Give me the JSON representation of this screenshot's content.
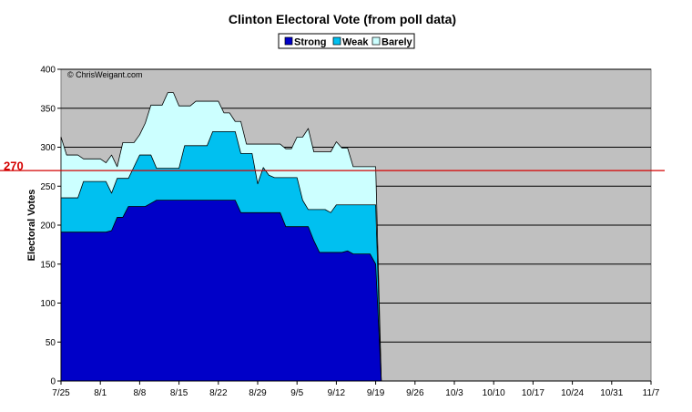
{
  "chart_data": {
    "type": "area",
    "title": "Clinton Electoral Vote (from poll data)",
    "xlabel": "",
    "ylabel": "Electoral Votes",
    "annotation": "© ChrisWeigant.com",
    "ylim": [
      0,
      400
    ],
    "yticks": [
      0,
      50,
      100,
      150,
      200,
      250,
      300,
      350,
      400
    ],
    "xlim": [
      "7/25",
      "11/7"
    ],
    "xticks": [
      "7/25",
      "8/1",
      "8/8",
      "8/15",
      "8/22",
      "8/29",
      "9/5",
      "9/12",
      "9/19",
      "9/26",
      "10/3",
      "10/10",
      "10/17",
      "10/24",
      "10/31",
      "11/7"
    ],
    "grid": "horizontal",
    "legend_position": "top-center",
    "reference_line": {
      "value": 270,
      "label": "270",
      "color": "#d40000"
    },
    "plot_background": "#c0c0c0",
    "x": [
      "7/25",
      "7/26",
      "7/27",
      "7/28",
      "7/29",
      "7/30",
      "7/31",
      "8/1",
      "8/2",
      "8/3",
      "8/4",
      "8/5",
      "8/6",
      "8/7",
      "8/8",
      "8/9",
      "8/10",
      "8/11",
      "8/12",
      "8/13",
      "8/14",
      "8/15",
      "8/16",
      "8/17",
      "8/18",
      "8/19",
      "8/20",
      "8/21",
      "8/22",
      "8/23",
      "8/24",
      "8/25",
      "8/26",
      "8/27",
      "8/28",
      "8/29",
      "8/30",
      "8/31",
      "9/1",
      "9/2",
      "9/3",
      "9/4",
      "9/5",
      "9/6",
      "9/7",
      "9/8",
      "9/9",
      "9/10",
      "9/11",
      "9/12",
      "9/13",
      "9/14",
      "9/15",
      "9/16",
      "9/17",
      "9/18",
      "9/19",
      "9/20"
    ],
    "series": [
      {
        "name": "Strong",
        "color": "#0000c8",
        "values": [
          191,
          191,
          191,
          191,
          191,
          191,
          191,
          191,
          191,
          193,
          210,
          210,
          224,
          224,
          224,
          224,
          228,
          232,
          232,
          232,
          232,
          232,
          232,
          232,
          232,
          232,
          232,
          232,
          232,
          232,
          232,
          232,
          216,
          216,
          216,
          216,
          216,
          216,
          216,
          216,
          198,
          198,
          198,
          198,
          198,
          180,
          165,
          165,
          165,
          165,
          165,
          167,
          163,
          163,
          163,
          163,
          150,
          0
        ]
      },
      {
        "name": "Weak",
        "color": "#00c0f0",
        "values": [
          235,
          235,
          235,
          235,
          256,
          256,
          256,
          256,
          256,
          241,
          260,
          260,
          260,
          275,
          290,
          290,
          290,
          273,
          273,
          273,
          273,
          273,
          302,
          302,
          302,
          302,
          302,
          320,
          320,
          320,
          320,
          320,
          292,
          292,
          292,
          253,
          274,
          264,
          261,
          261,
          261,
          261,
          261,
          232,
          220,
          220,
          220,
          220,
          216,
          226,
          226,
          226,
          226,
          226,
          226,
          226,
          226,
          0
        ]
      },
      {
        "name": "Barely",
        "color": "#ccffff",
        "values": [
          313,
          290,
          290,
          290,
          285,
          285,
          285,
          285,
          280,
          290,
          275,
          306,
          306,
          306,
          316,
          331,
          354,
          354,
          354,
          370,
          370,
          353,
          353,
          353,
          359,
          359,
          359,
          359,
          359,
          344,
          344,
          333,
          333,
          304,
          304,
          304,
          304,
          304,
          304,
          304,
          298,
          298,
          313,
          313,
          324,
          294,
          294,
          294,
          294,
          307,
          299,
          299,
          275,
          275,
          275,
          275,
          275,
          0
        ]
      }
    ]
  }
}
